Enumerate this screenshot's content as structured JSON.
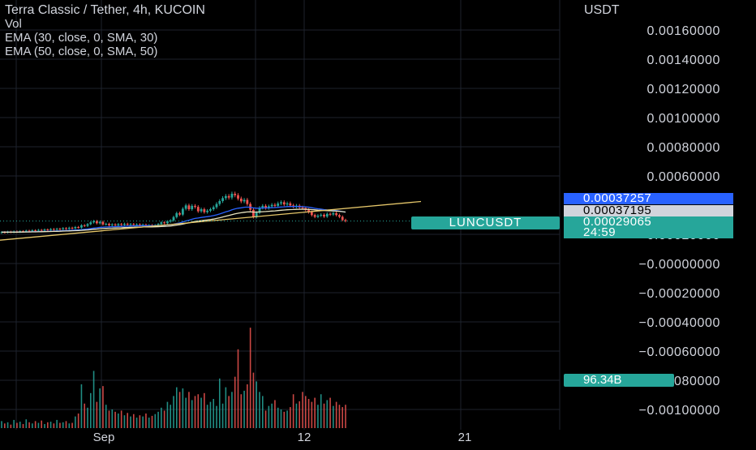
{
  "legend": {
    "title": "Terra Classic / Tether, 4h, KUCOIN",
    "vol": "Vol",
    "ema1": "EMA (30, close, 0, SMA, 30)",
    "ema2": "EMA (50, close, 0, SMA, 50)"
  },
  "price_tags": {
    "blue": "0.00037257",
    "white": "0.00037195",
    "green": "0.00029065",
    "countdown": "24:59",
    "symbol": "LUNCUSDT",
    "volume": "96.34B"
  },
  "colors": {
    "up": "#26a69a",
    "down": "#ef5350",
    "ema30": "#2962ff",
    "ema50": "#e8e4c0",
    "trendline": "#e6c76a",
    "blue_tag": "#2962ff",
    "white_tag": "#d1d4dc",
    "green_tag": "#26a69a",
    "grid": "#1e222d",
    "text": "#d1d4dc"
  },
  "chart_data": {
    "type": "candlestick",
    "y_axis_unit": "USDT",
    "ylim": [
      -0.00105,
      0.00175
    ],
    "y_ticks": [
      "0.00160000",
      "0.00140000",
      "0.00120000",
      "0.00100000",
      "0.00080000",
      "0.00060000",
      "0.00020000",
      "−0.00000000",
      "−0.00020000",
      "−0.00040000",
      "−0.00060000",
      "−0.00080000",
      "−0.00100000"
    ],
    "y_tick_values": [
      0.0016,
      0.0014,
      0.0012,
      0.001,
      0.0008,
      0.0006,
      0.0002,
      0,
      -0.0002,
      -0.0004,
      -0.0006,
      -0.0008,
      -0.001
    ],
    "x_ticks": [
      "Sep",
      "12",
      "21"
    ],
    "current_price": 0.00029065,
    "price_ema30": 0.00037257,
    "price_ema50": 0.00037195,
    "candles": [
      {
        "o": 0.00021,
        "c": 0.000215
      },
      {
        "o": 0.000215,
        "c": 0.000212
      },
      {
        "o": 0.000212,
        "c": 0.000218
      },
      {
        "o": 0.000218,
        "c": 0.000214
      },
      {
        "o": 0.000214,
        "c": 0.00022
      },
      {
        "o": 0.00022,
        "c": 0.000216
      },
      {
        "o": 0.000216,
        "c": 0.000222
      },
      {
        "o": 0.000222,
        "c": 0.000219
      },
      {
        "o": 0.000219,
        "c": 0.000225
      },
      {
        "o": 0.000225,
        "c": 0.000221
      },
      {
        "o": 0.000221,
        "c": 0.000228
      },
      {
        "o": 0.000228,
        "c": 0.000224
      },
      {
        "o": 0.000224,
        "c": 0.00023
      },
      {
        "o": 0.00023,
        "c": 0.000226
      },
      {
        "o": 0.000226,
        "c": 0.000233
      },
      {
        "o": 0.000233,
        "c": 0.000229
      },
      {
        "o": 0.000229,
        "c": 0.000236
      },
      {
        "o": 0.000236,
        "c": 0.000232
      },
      {
        "o": 0.000232,
        "c": 0.000238
      },
      {
        "o": 0.000238,
        "c": 0.000235
      },
      {
        "o": 0.000235,
        "c": 0.000242
      },
      {
        "o": 0.000242,
        "c": 0.000238
      },
      {
        "o": 0.000238,
        "c": 0.000245
      },
      {
        "o": 0.000245,
        "c": 0.000241
      },
      {
        "o": 0.000241,
        "c": 0.00025
      },
      {
        "o": 0.00025,
        "c": 0.000246
      },
      {
        "o": 0.000246,
        "c": 0.000262
      },
      {
        "o": 0.000262,
        "c": 0.000258
      },
      {
        "o": 0.000258,
        "c": 0.00027
      },
      {
        "o": 0.00027,
        "c": 0.000282
      },
      {
        "o": 0.000282,
        "c": 0.00029
      },
      {
        "o": 0.00029,
        "c": 0.000276
      },
      {
        "o": 0.000276,
        "c": 0.000285
      },
      {
        "o": 0.000285,
        "c": 0.000268
      },
      {
        "o": 0.000268,
        "c": 0.000272
      },
      {
        "o": 0.000272,
        "c": 0.000262
      },
      {
        "o": 0.000262,
        "c": 0.000268
      },
      {
        "o": 0.000268,
        "c": 0.000262
      },
      {
        "o": 0.000262,
        "c": 0.00027
      },
      {
        "o": 0.00027,
        "c": 0.000265
      },
      {
        "o": 0.000265,
        "c": 0.000272
      },
      {
        "o": 0.000272,
        "c": 0.000266
      },
      {
        "o": 0.000266,
        "c": 0.00027
      },
      {
        "o": 0.00027,
        "c": 0.000264
      },
      {
        "o": 0.000264,
        "c": 0.000268
      },
      {
        "o": 0.000268,
        "c": 0.000262
      },
      {
        "o": 0.000262,
        "c": 0.000266
      },
      {
        "o": 0.000266,
        "c": 0.000258
      },
      {
        "o": 0.000258,
        "c": 0.000262
      },
      {
        "o": 0.000262,
        "c": 0.000257
      },
      {
        "o": 0.000257,
        "c": 0.000262
      },
      {
        "o": 0.000262,
        "c": 0.00027
      },
      {
        "o": 0.00027,
        "c": 0.000282
      },
      {
        "o": 0.000282,
        "c": 0.000276
      },
      {
        "o": 0.000276,
        "c": 0.000288
      },
      {
        "o": 0.000288,
        "c": 0.000295
      },
      {
        "o": 0.000295,
        "c": 0.000318
      },
      {
        "o": 0.000318,
        "c": 0.000345
      },
      {
        "o": 0.000345,
        "c": 0.000335
      },
      {
        "o": 0.000335,
        "c": 0.000375
      },
      {
        "o": 0.000375,
        "c": 0.000398
      },
      {
        "o": 0.000398,
        "c": 0.000372
      },
      {
        "o": 0.000372,
        "c": 0.000395
      },
      {
        "o": 0.000395,
        "c": 0.000388
      },
      {
        "o": 0.000388,
        "c": 0.000358
      },
      {
        "o": 0.000358,
        "c": 0.000372
      },
      {
        "o": 0.000372,
        "c": 0.000352
      },
      {
        "o": 0.000352,
        "c": 0.000362
      },
      {
        "o": 0.000362,
        "c": 0.000372
      },
      {
        "o": 0.000372,
        "c": 0.000386
      },
      {
        "o": 0.000386,
        "c": 0.000408
      },
      {
        "o": 0.000408,
        "c": 0.000428
      },
      {
        "o": 0.000428,
        "c": 0.000448
      },
      {
        "o": 0.000448,
        "c": 0.000462
      },
      {
        "o": 0.000462,
        "c": 0.000452
      },
      {
        "o": 0.000452,
        "c": 0.000478
      },
      {
        "o": 0.000478,
        "c": 0.000468
      },
      {
        "o": 0.000468,
        "c": 0.000445
      },
      {
        "o": 0.000445,
        "c": 0.000426
      },
      {
        "o": 0.000426,
        "c": 0.000436
      },
      {
        "o": 0.000436,
        "c": 0.000408
      },
      {
        "o": 0.000408,
        "c": 0.000368
      },
      {
        "o": 0.000368,
        "c": 0.000318
      },
      {
        "o": 0.000318,
        "c": 0.000348
      },
      {
        "o": 0.000348,
        "c": 0.000382
      },
      {
        "o": 0.000382,
        "c": 0.000395
      },
      {
        "o": 0.000395,
        "c": 0.00038
      },
      {
        "o": 0.00038,
        "c": 0.000392
      },
      {
        "o": 0.000392,
        "c": 0.000402
      },
      {
        "o": 0.000402,
        "c": 0.000395
      },
      {
        "o": 0.000395,
        "c": 0.000412
      },
      {
        "o": 0.000412,
        "c": 0.00042
      },
      {
        "o": 0.00042,
        "c": 0.000405
      },
      {
        "o": 0.000405,
        "c": 0.000412
      },
      {
        "o": 0.000412,
        "c": 0.000398
      },
      {
        "o": 0.000398,
        "c": 0.00039
      },
      {
        "o": 0.00039,
        "c": 0.000396
      },
      {
        "o": 0.000396,
        "c": 0.000384
      },
      {
        "o": 0.000384,
        "c": 0.00038
      },
      {
        "o": 0.00038,
        "c": 0.000368
      },
      {
        "o": 0.000368,
        "c": 0.000352
      },
      {
        "o": 0.000352,
        "c": 0.000332
      },
      {
        "o": 0.000332,
        "c": 0.00032
      },
      {
        "o": 0.00032,
        "c": 0.000328
      },
      {
        "o": 0.000328,
        "c": 0.000334
      },
      {
        "o": 0.000334,
        "c": 0.000322
      },
      {
        "o": 0.000322,
        "c": 0.00034
      },
      {
        "o": 0.00034,
        "c": 0.000336
      },
      {
        "o": 0.000336,
        "c": 0.000345
      },
      {
        "o": 0.000345,
        "c": 0.000332
      },
      {
        "o": 0.000332,
        "c": 0.00032
      },
      {
        "o": 0.00032,
        "c": 0.000298
      },
      {
        "o": 0.000298,
        "c": 0.000291
      }
    ],
    "volumes": [
      0.12,
      0.08,
      0.1,
      0.06,
      0.14,
      0.09,
      0.11,
      0.07,
      0.15,
      0.1,
      0.08,
      0.12,
      0.09,
      0.13,
      0.07,
      0.1,
      0.11,
      0.08,
      0.14,
      0.09,
      0.1,
      0.12,
      0.08,
      0.09,
      0.2,
      0.25,
      0.75,
      0.42,
      0.35,
      0.6,
      0.98,
      0.45,
      0.68,
      0.72,
      0.4,
      0.3,
      0.32,
      0.28,
      0.25,
      0.3,
      0.22,
      0.26,
      0.2,
      0.24,
      0.18,
      0.22,
      0.2,
      0.25,
      0.18,
      0.21,
      0.24,
      0.28,
      0.35,
      0.3,
      0.45,
      0.4,
      0.55,
      0.7,
      0.62,
      0.68,
      0.52,
      0.62,
      0.48,
      0.55,
      0.58,
      0.52,
      0.6,
      0.4,
      0.45,
      0.5,
      0.38,
      0.85,
      0.42,
      0.7,
      0.55,
      0.62,
      0.88,
      1.35,
      0.58,
      0.64,
      0.75,
      1.72,
      0.95,
      0.8,
      0.62,
      0.55,
      0.3,
      0.38,
      0.42,
      0.48,
      0.35,
      0.32,
      0.28,
      0.3,
      0.36,
      0.58,
      0.42,
      0.46,
      0.62,
      0.55,
      0.5,
      0.45,
      0.52,
      0.4,
      0.58,
      0.42,
      0.48,
      0.52,
      0.38,
      0.45,
      0.4,
      0.36,
      0.4
    ]
  }
}
